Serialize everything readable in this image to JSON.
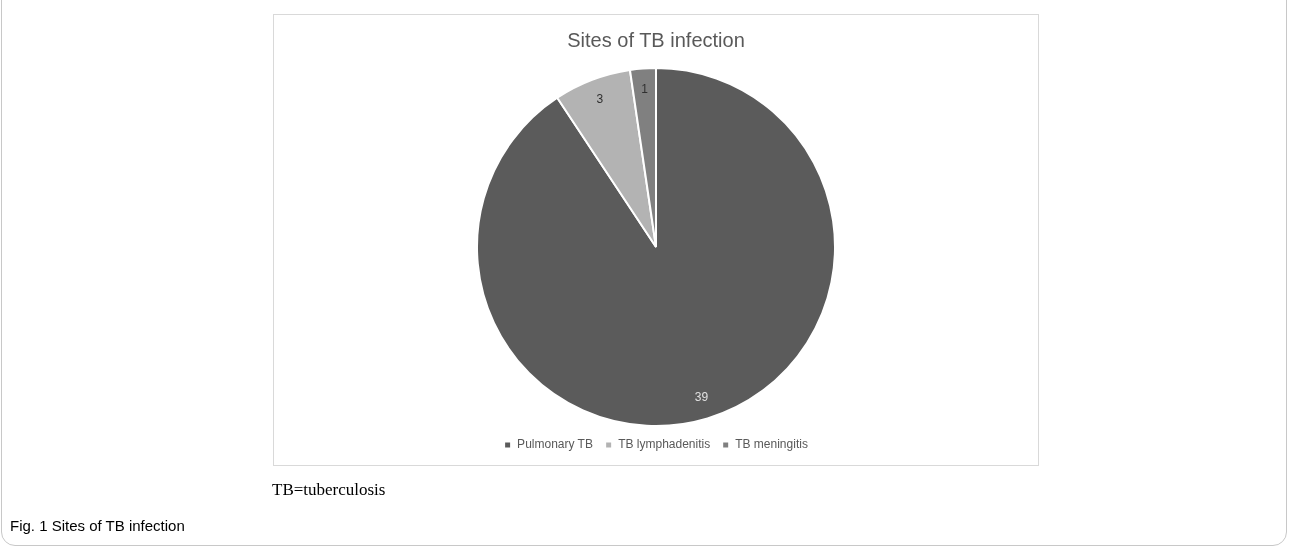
{
  "chart_data": {
    "type": "pie",
    "title": "Sites of TB infection",
    "categories": [
      "Pulmonary TB",
      "TB lymphadenitis",
      "TB meningitis"
    ],
    "values": [
      39,
      3,
      1
    ],
    "colors": [
      "#5b5b5b",
      "#b3b3b3",
      "#808080"
    ],
    "data_labels": true,
    "legend": "bottom",
    "annotations": [
      "TB=tuberculosis",
      "Fig. 1 Sites of TB infection"
    ]
  }
}
